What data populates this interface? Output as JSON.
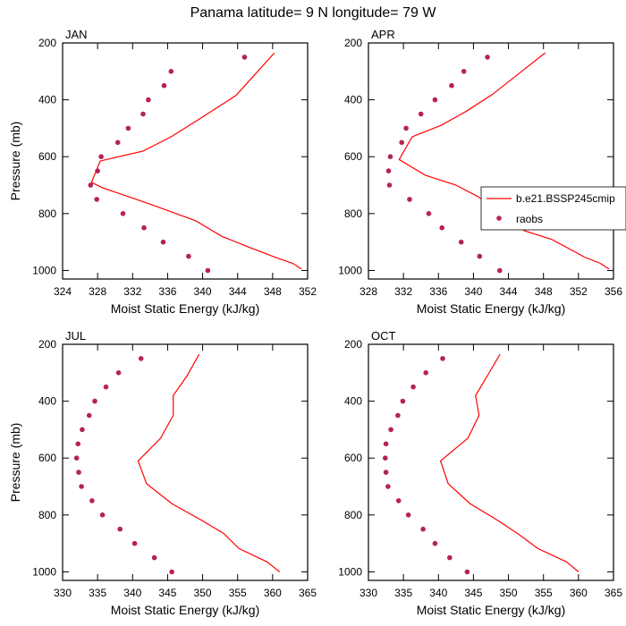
{
  "title": "Panama  latitude= 9 N longitude= 79 W",
  "legend": {
    "model_label": "b.e21.BSSP245cmip",
    "obs_label": "raobs",
    "model_color": "#ff0000",
    "obs_color": "#b5234e"
  },
  "chart_data": [
    {
      "type": "line",
      "panel": "JAN",
      "xlabel": "Moist Static Energy (kJ/kg)",
      "ylabel": "Pressure (mb)",
      "xlim": [
        324,
        352
      ],
      "xticks": [
        324,
        328,
        332,
        336,
        340,
        344,
        348,
        352
      ],
      "ylim": [
        200,
        1030
      ],
      "yticks": [
        200,
        400,
        600,
        800,
        1000
      ],
      "y_inverted": true,
      "series": [
        {
          "name": "b.e21.BSSP245cmip",
          "kind": "line",
          "points": [
            [
              348.2,
              235
            ],
            [
              346.3,
              300
            ],
            [
              343.8,
              385
            ],
            [
              339.5,
              470
            ],
            [
              336.4,
              530
            ],
            [
              333.2,
              580
            ],
            [
              328.3,
              615
            ],
            [
              327.3,
              690
            ],
            [
              328.6,
              710
            ],
            [
              331.5,
              740
            ],
            [
              334.3,
              770
            ],
            [
              339.2,
              825
            ],
            [
              342.2,
              880
            ],
            [
              345.3,
              918
            ],
            [
              348.4,
              955
            ],
            [
              350.3,
              975
            ],
            [
              351.3,
              995
            ]
          ]
        },
        {
          "name": "raobs",
          "kind": "scatter",
          "points": [
            [
              344.8,
              250
            ],
            [
              336.4,
              300
            ],
            [
              335.6,
              350
            ],
            [
              333.8,
              400
            ],
            [
              333.2,
              450
            ],
            [
              331.5,
              500
            ],
            [
              330.3,
              550
            ],
            [
              328.4,
              600
            ],
            [
              328.0,
              650
            ],
            [
              327.2,
              700
            ],
            [
              327.9,
              750
            ],
            [
              330.9,
              800
            ],
            [
              333.3,
              850
            ],
            [
              335.5,
              900
            ],
            [
              338.4,
              950
            ],
            [
              340.6,
              1000
            ]
          ]
        }
      ]
    },
    {
      "type": "line",
      "panel": "APR",
      "xlabel": "Moist Static Energy (kJ/kg)",
      "ylabel": "",
      "xlim": [
        328,
        356
      ],
      "xticks": [
        328,
        332,
        336,
        340,
        344,
        348,
        352,
        356
      ],
      "ylim": [
        200,
        1030
      ],
      "yticks": [
        200,
        400,
        600,
        800,
        1000
      ],
      "y_inverted": true,
      "series": [
        {
          "name": "b.e21.BSSP245cmip",
          "kind": "line",
          "points": [
            [
              348.2,
              235
            ],
            [
              345.5,
              300
            ],
            [
              342.2,
              380
            ],
            [
              339.2,
              440
            ],
            [
              336.3,
              490
            ],
            [
              333.0,
              530
            ],
            [
              331.5,
              610
            ],
            [
              334.5,
              665
            ],
            [
              338.0,
              700
            ],
            [
              340.5,
              740
            ],
            [
              343.4,
              800
            ],
            [
              345.8,
              860
            ],
            [
              348.9,
              890
            ],
            [
              352.7,
              953
            ],
            [
              354.5,
              975
            ],
            [
              355.5,
              995
            ]
          ]
        },
        {
          "name": "raobs",
          "kind": "scatter",
          "points": [
            [
              341.6,
              250
            ],
            [
              338.9,
              300
            ],
            [
              337.5,
              350
            ],
            [
              335.6,
              400
            ],
            [
              334.0,
              450
            ],
            [
              332.3,
              500
            ],
            [
              331.8,
              550
            ],
            [
              330.5,
              600
            ],
            [
              330.3,
              650
            ],
            [
              330.4,
              700
            ],
            [
              332.7,
              750
            ],
            [
              334.9,
              800
            ],
            [
              336.4,
              850
            ],
            [
              338.6,
              900
            ],
            [
              340.7,
              950
            ],
            [
              343.0,
              1000
            ]
          ]
        }
      ]
    },
    {
      "type": "line",
      "panel": "JUL",
      "xlabel": "Moist Static Energy (kJ/kg)",
      "ylabel": "Pressure (mb)",
      "xlim": [
        330,
        365
      ],
      "xticks": [
        330,
        335,
        340,
        345,
        350,
        355,
        360,
        365
      ],
      "ylim": [
        200,
        1030
      ],
      "yticks": [
        200,
        400,
        600,
        800,
        1000
      ],
      "y_inverted": true,
      "series": [
        {
          "name": "b.e21.BSSP245cmip",
          "kind": "line",
          "points": [
            [
              349.5,
              235
            ],
            [
              347.8,
              310
            ],
            [
              345.8,
              380
            ],
            [
              345.8,
              450
            ],
            [
              344.0,
              530
            ],
            [
              340.8,
              610
            ],
            [
              342.0,
              690
            ],
            [
              345.6,
              760
            ],
            [
              349.6,
              815
            ],
            [
              353.0,
              865
            ],
            [
              355.2,
              918
            ],
            [
              359.2,
              965
            ],
            [
              361.0,
              1000
            ]
          ]
        },
        {
          "name": "raobs",
          "kind": "scatter",
          "points": [
            [
              341.2,
              250
            ],
            [
              338.0,
              300
            ],
            [
              336.2,
              350
            ],
            [
              334.6,
              400
            ],
            [
              333.8,
              450
            ],
            [
              332.8,
              500
            ],
            [
              332.2,
              550
            ],
            [
              332.0,
              600
            ],
            [
              332.3,
              650
            ],
            [
              332.7,
              700
            ],
            [
              334.2,
              750
            ],
            [
              335.7,
              800
            ],
            [
              338.2,
              850
            ],
            [
              340.3,
              900
            ],
            [
              343.1,
              950
            ],
            [
              345.6,
              1000
            ]
          ]
        }
      ]
    },
    {
      "type": "line",
      "panel": "OCT",
      "xlabel": "Moist Static Energy (kJ/kg)",
      "ylabel": "",
      "xlim": [
        330,
        365
      ],
      "xticks": [
        330,
        335,
        340,
        345,
        350,
        355,
        360,
        365
      ],
      "ylim": [
        200,
        1030
      ],
      "yticks": [
        200,
        400,
        600,
        800,
        1000
      ],
      "y_inverted": true,
      "series": [
        {
          "name": "b.e21.BSSP245cmip",
          "kind": "line",
          "points": [
            [
              348.8,
              235
            ],
            [
              347.0,
              310
            ],
            [
              345.3,
              380
            ],
            [
              345.8,
              450
            ],
            [
              344.2,
              530
            ],
            [
              340.3,
              610
            ],
            [
              341.4,
              690
            ],
            [
              344.5,
              760
            ],
            [
              348.2,
              815
            ],
            [
              351.3,
              865
            ],
            [
              354.2,
              918
            ],
            [
              358.3,
              965
            ],
            [
              360.0,
              1000
            ]
          ]
        },
        {
          "name": "raobs",
          "kind": "scatter",
          "points": [
            [
              340.6,
              250
            ],
            [
              338.2,
              300
            ],
            [
              336.4,
              350
            ],
            [
              334.9,
              400
            ],
            [
              334.2,
              450
            ],
            [
              333.2,
              500
            ],
            [
              332.5,
              550
            ],
            [
              332.4,
              600
            ],
            [
              332.5,
              650
            ],
            [
              332.8,
              700
            ],
            [
              334.3,
              750
            ],
            [
              335.7,
              800
            ],
            [
              337.8,
              850
            ],
            [
              339.5,
              900
            ],
            [
              341.6,
              950
            ],
            [
              344.1,
              1000
            ]
          ]
        }
      ]
    }
  ]
}
